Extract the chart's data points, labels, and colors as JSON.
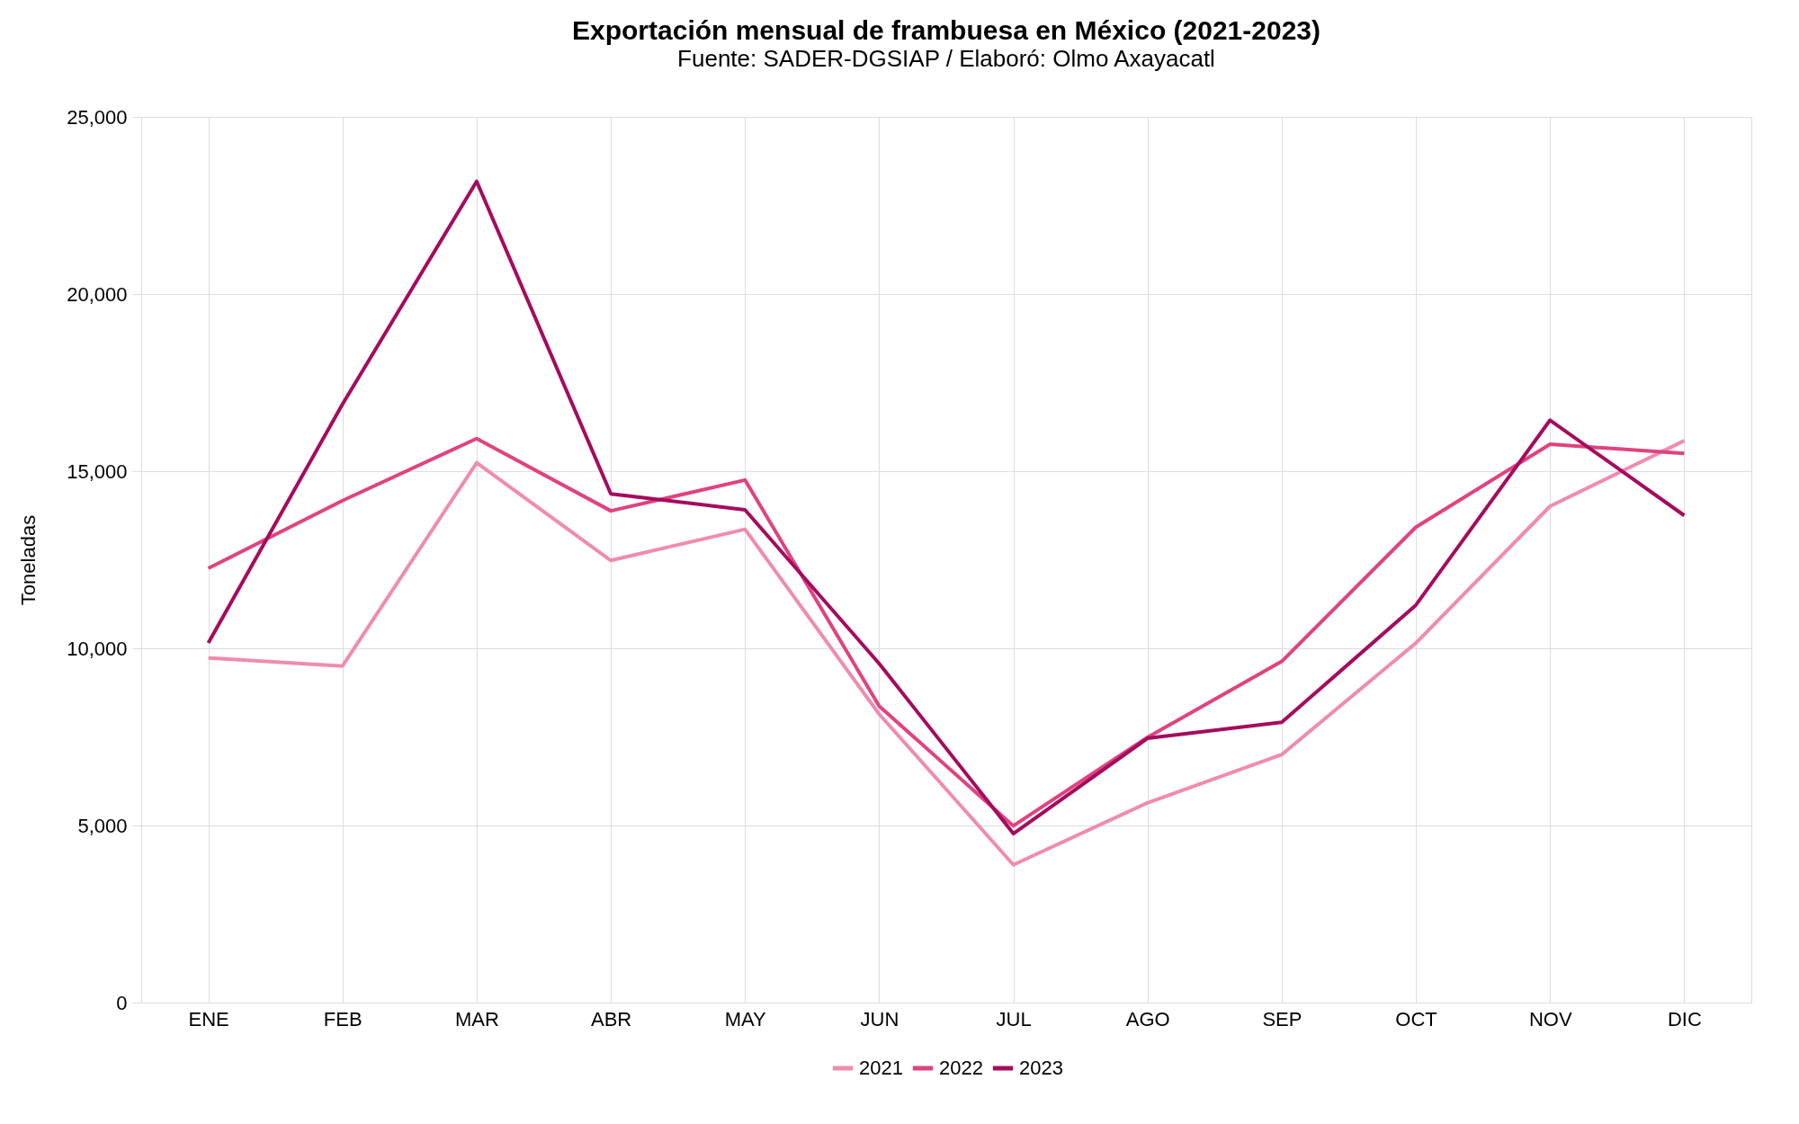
{
  "chart_data": {
    "type": "line",
    "title": "Exportación mensual de frambuesa en México (2021-2023)",
    "subtitle": "Fuente: SADER-DGSIAP / Elaboró: Olmo Axayacatl",
    "ylabel": "Toneladas",
    "categories": [
      "ENE",
      "FEB",
      "MAR",
      "ABR",
      "MAY",
      "JUN",
      "JUL",
      "AGO",
      "SEP",
      "OCT",
      "NOV",
      "DIC"
    ],
    "series": [
      {
        "name": "2021",
        "color": "#f08bb0",
        "values": [
          9730,
          9500,
          15240,
          12480,
          13360,
          8140,
          3890,
          5640,
          7000,
          10150,
          14010,
          15860
        ]
      },
      {
        "name": "2022",
        "color": "#e0437f",
        "values": [
          12260,
          14170,
          15920,
          13880,
          14750,
          8370,
          4990,
          7490,
          9630,
          13420,
          15760,
          15500
        ]
      },
      {
        "name": "2023",
        "color": "#a50b5e",
        "values": [
          10150,
          16890,
          23180,
          14360,
          13910,
          9570,
          4770,
          7460,
          7910,
          11220,
          16440,
          13750
        ]
      }
    ],
    "ylim": [
      0,
      25000
    ],
    "yticks": [
      0,
      {
        "value": 5000,
        "label": "5,000"
      },
      {
        "value": 10000,
        "label": "10,000"
      },
      {
        "value": 15000,
        "label": "15,000"
      },
      {
        "value": 20000,
        "label": "20,000"
      },
      {
        "value": 25000,
        "label": "25,000"
      }
    ],
    "grid": true,
    "legend": "bottom",
    "line_style": "solid",
    "marker": "none"
  }
}
